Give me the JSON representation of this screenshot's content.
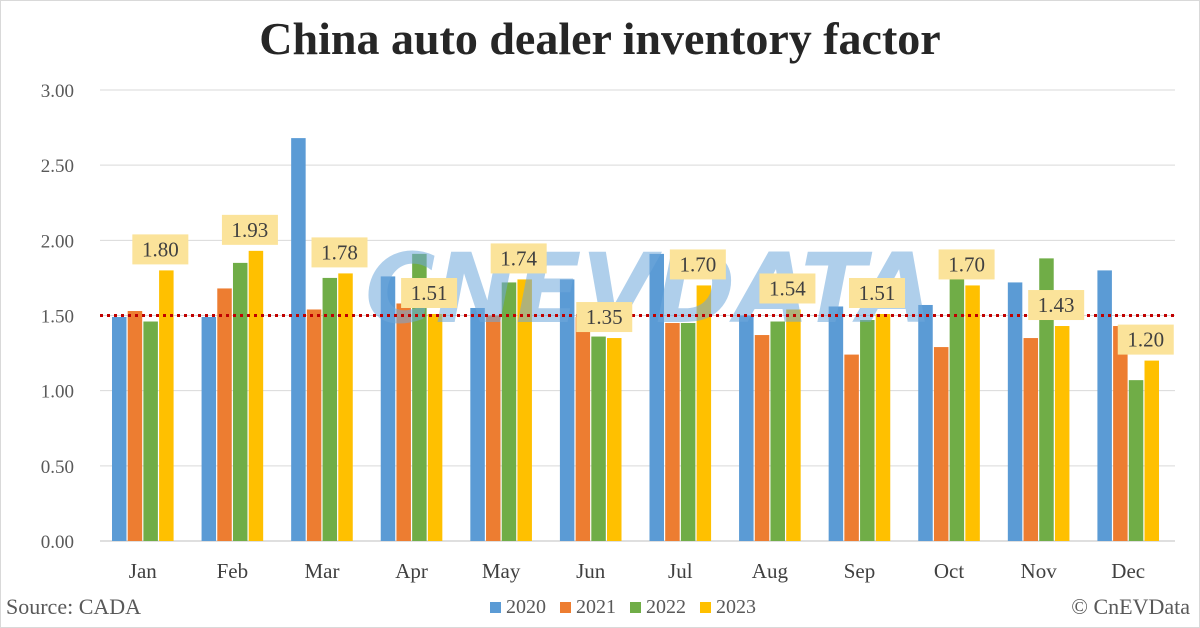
{
  "chart_data": {
    "type": "bar",
    "title": "China auto dealer inventory factor",
    "categories": [
      "Jan",
      "Feb",
      "Mar",
      "Apr",
      "May",
      "Jun",
      "Jul",
      "Aug",
      "Sep",
      "Oct",
      "Nov",
      "Dec"
    ],
    "series": [
      {
        "name": "2020",
        "color": "#5b9bd5",
        "values": [
          1.49,
          1.49,
          2.68,
          1.76,
          1.55,
          1.74,
          1.91,
          1.5,
          1.56,
          1.57,
          1.72,
          1.8
        ]
      },
      {
        "name": "2021",
        "color": "#ed7d31",
        "values": [
          1.53,
          1.68,
          1.54,
          1.58,
          1.5,
          1.49,
          1.45,
          1.37,
          1.24,
          1.29,
          1.35,
          1.43
        ]
      },
      {
        "name": "2022",
        "color": "#70ad47",
        "values": [
          1.46,
          1.85,
          1.75,
          1.91,
          1.72,
          1.36,
          1.45,
          1.46,
          1.47,
          1.76,
          1.88,
          1.07
        ]
      },
      {
        "name": "2023",
        "color": "#ffc000",
        "values": [
          1.8,
          1.93,
          1.78,
          1.51,
          1.74,
          1.35,
          1.7,
          1.54,
          1.51,
          1.7,
          1.43,
          1.2
        ]
      }
    ],
    "data_labels": [
      "1.80",
      "1.93",
      "1.78",
      "1.51",
      "1.74",
      "1.35",
      "1.70",
      "1.54",
      "1.51",
      "1.70",
      "1.43",
      "1.20"
    ],
    "yticks": [
      "0.00",
      "0.50",
      "1.00",
      "1.50",
      "2.00",
      "2.50",
      "3.00"
    ],
    "ylim": [
      0,
      3
    ],
    "reference_line": {
      "value": 1.5,
      "color": "#c00000",
      "style": "dotted"
    },
    "grid": true,
    "legend": "bottom-center",
    "label_box_color": "#fbe39a"
  },
  "footer": {
    "source": "Source: CADA",
    "copyright": "© CnEVData"
  },
  "watermark": "CNEVDATA"
}
